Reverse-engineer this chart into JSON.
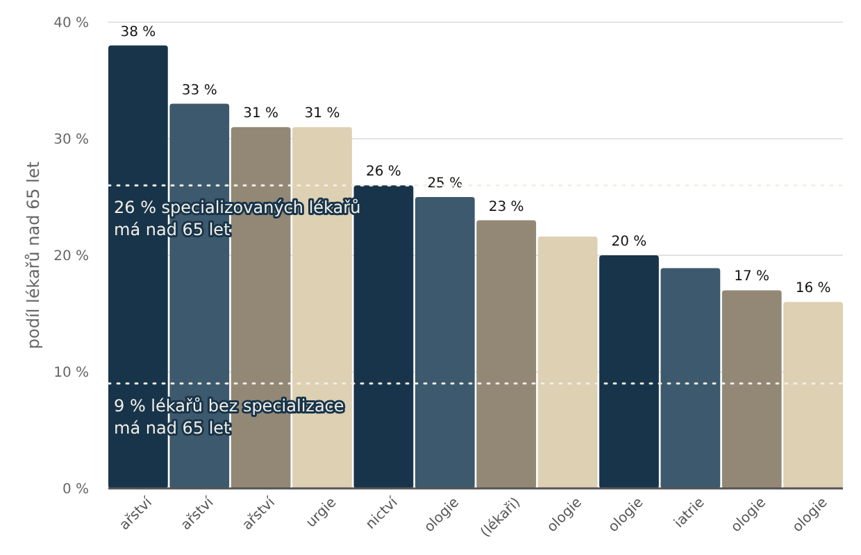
{
  "chart_data": {
    "type": "bar",
    "ylabel": "podíl lékařů nad 65 let",
    "categories": [
      "ařství",
      "ařství",
      "ařství",
      "urgie",
      "nictví",
      "ologie",
      "(lékaři)",
      "ologie",
      "ologie",
      "iatrie",
      "ologie",
      "ologie"
    ],
    "values": [
      38,
      33,
      31,
      31,
      26,
      25,
      23,
      21.6,
      20,
      18.9,
      17,
      16
    ],
    "value_labels": [
      "38 %",
      "33 %",
      "31 %",
      "31 %",
      "26 %",
      "25 %",
      "23 %",
      null,
      "20 %",
      null,
      "17 %",
      "16 %"
    ],
    "colors": [
      "#18344a",
      "#3d596d",
      "#938876",
      "#ddd0b3",
      "#18344a",
      "#3d596d",
      "#938876",
      "#ddd0b3",
      "#18344a",
      "#3d596d",
      "#938876",
      "#ddd0b3"
    ],
    "ylim": [
      0,
      40
    ],
    "yticks": [
      {
        "value": 0,
        "label": "0 %"
      },
      {
        "value": 10,
        "label": "10 %"
      },
      {
        "value": 20,
        "label": "20 %"
      },
      {
        "value": 30,
        "label": "30 %"
      },
      {
        "value": 40,
        "label": "40 %"
      }
    ],
    "grid": "y",
    "ref_lines": [
      {
        "axis": "y",
        "value": 26,
        "label": "26 % specializovaných lékařů má nad 65 let",
        "color": "#f2efe6",
        "line_style": "dotted"
      },
      {
        "axis": "y",
        "value": 9,
        "label": "9 % lékařů bez specializace má nad 65 let",
        "color": "#f2efe6",
        "line_style": "dotted"
      }
    ]
  }
}
